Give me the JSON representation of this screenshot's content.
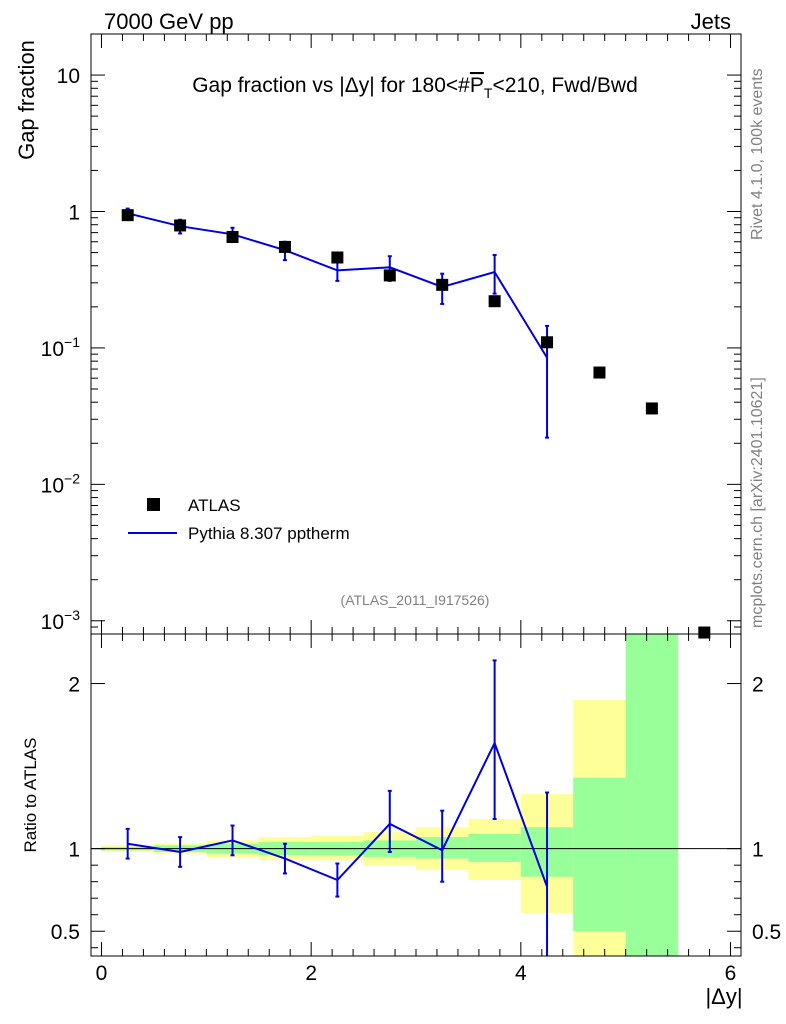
{
  "header": {
    "left": "7000 GeV pp",
    "right": "Jets",
    "side_top": "Rivet 4.1.0,  100k events",
    "side_bottom": "mcplots.cern.ch [arXiv:2401.10621]",
    "analysis": "(ATLAS_2011_I917526)"
  },
  "chart_data": [
    {
      "type": "scatter",
      "panel": "main",
      "title": "Gap fraction vs |Δy| for 180<#P̅T<210, Fwd/Bwd",
      "title_parts": [
        "Gap fraction vs |Δy| for 180<#",
        "P",
        "T",
        "<210, Fwd/Bwd"
      ],
      "ylabel": "Gap fraction",
      "yscale": "log",
      "ylim": [
        0.0008,
        20
      ],
      "xlim": [
        -0.1,
        6.1
      ],
      "y_ticks": [
        {
          "value": 10,
          "base": "10",
          "exp": ""
        },
        {
          "value": 1,
          "base": "1",
          "exp": ""
        },
        {
          "value": 0.1,
          "base": "10",
          "exp": "−1"
        },
        {
          "value": 0.01,
          "base": "10",
          "exp": "−2"
        },
        {
          "value": 0.001,
          "base": "10",
          "exp": "−3"
        }
      ],
      "legend": {
        "position": "bottom-left",
        "data_label": "ATLAS",
        "mc_label": "Pythia 8.307 pptherm"
      },
      "data": {
        "name": "ATLAS",
        "x": [
          0.25,
          0.75,
          1.25,
          1.75,
          2.25,
          2.75,
          3.25,
          3.75,
          4.25,
          4.75,
          5.25,
          5.75
        ],
        "y": [
          0.94,
          0.79,
          0.65,
          0.55,
          0.46,
          0.34,
          0.29,
          0.22,
          0.11,
          0.066,
          0.036,
          0.00082
        ]
      },
      "mc": {
        "name": "Pythia 8.307 pptherm",
        "color": "#0000dd",
        "x": [
          0.25,
          0.75,
          1.25,
          1.75,
          2.25,
          2.75,
          3.25,
          3.75,
          4.25
        ],
        "y": [
          0.97,
          0.78,
          0.68,
          0.52,
          0.37,
          0.39,
          0.28,
          0.36,
          0.085
        ],
        "err_lo": [
          0.08,
          0.09,
          0.08,
          0.08,
          0.06,
          0.08,
          0.07,
          0.11,
          0.063
        ],
        "err_hi": [
          0.08,
          0.09,
          0.08,
          0.08,
          0.06,
          0.08,
          0.07,
          0.12,
          0.06
        ]
      }
    },
    {
      "type": "scatter",
      "panel": "ratio",
      "ylabel": "Ratio to ATLAS",
      "xlabel": "|Δy|",
      "ylim": [
        0.35,
        2.3
      ],
      "xlim": [
        -0.1,
        6.1
      ],
      "x_ticks": [
        "0",
        "2",
        "4",
        "6"
      ],
      "y_ticks": [
        "0.5",
        "1",
        "2"
      ],
      "bands": {
        "bin_edges": [
          0,
          0.5,
          1,
          1.5,
          2,
          2.5,
          3,
          3.5,
          4,
          4.5,
          5,
          5.5
        ],
        "green_lo": [
          0.99,
          0.98,
          0.97,
          0.96,
          0.96,
          0.95,
          0.94,
          0.92,
          0.83,
          0.5,
          0.3
        ],
        "green_hi": [
          1.01,
          1.02,
          1.03,
          1.04,
          1.04,
          1.05,
          1.07,
          1.09,
          1.13,
          1.43,
          3.0
        ],
        "yellow_lo": [
          0.98,
          0.97,
          0.95,
          0.93,
          0.93,
          0.9,
          0.87,
          0.81,
          0.61,
          0.3,
          0.3
        ],
        "yellow_hi": [
          1.02,
          1.03,
          1.05,
          1.07,
          1.08,
          1.1,
          1.13,
          1.18,
          1.33,
          1.9,
          3.0
        ],
        "green_color": "#99ff99",
        "yellow_color": "#ffff99"
      },
      "mc_ratio": {
        "x": [
          0.25,
          0.75,
          1.25,
          1.75,
          2.25,
          2.75,
          3.25,
          3.75,
          4.25
        ],
        "y": [
          1.03,
          0.98,
          1.05,
          0.94,
          0.81,
          1.15,
          0.99,
          1.64,
          0.77
        ],
        "err_lo": [
          0.09,
          0.09,
          0.09,
          0.09,
          0.1,
          0.17,
          0.19,
          0.46,
          0.5
        ],
        "err_hi": [
          0.09,
          0.09,
          0.09,
          0.09,
          0.1,
          0.2,
          0.24,
          0.5,
          0.57
        ]
      }
    }
  ]
}
